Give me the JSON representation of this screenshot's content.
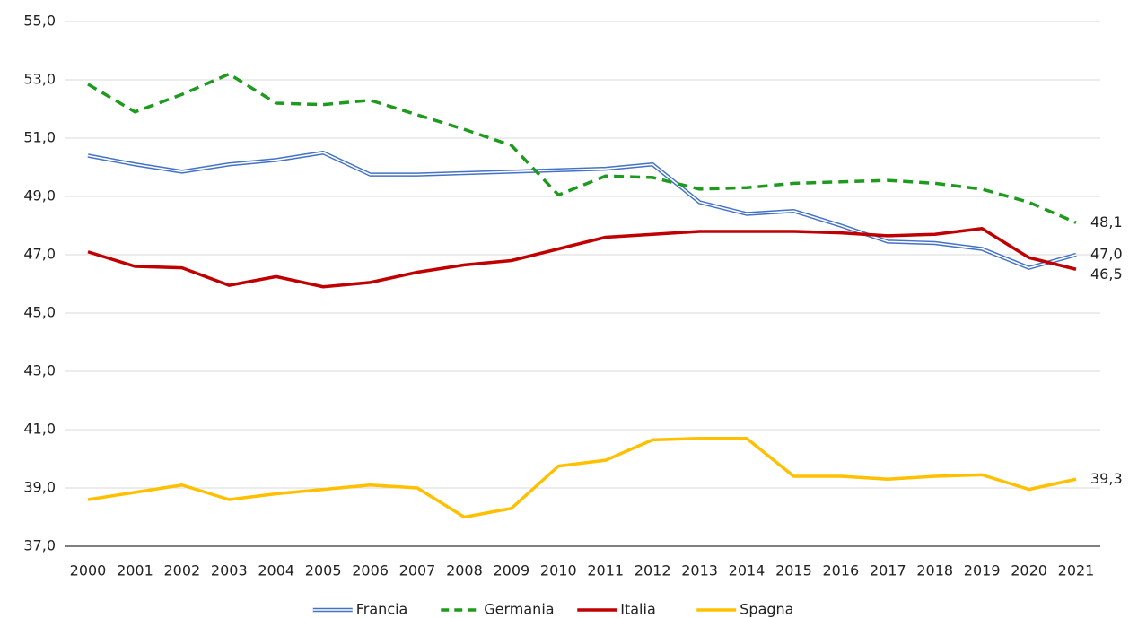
{
  "chart_data": {
    "type": "line",
    "categories": [
      "2000",
      "2001",
      "2002",
      "2003",
      "2004",
      "2005",
      "2006",
      "2007",
      "2008",
      "2009",
      "2010",
      "2011",
      "2012",
      "2013",
      "2014",
      "2015",
      "2016",
      "2017",
      "2018",
      "2019",
      "2020",
      "2021"
    ],
    "ylim": [
      37,
      55
    ],
    "yticks": [
      {
        "value": 37,
        "label": "37,0"
      },
      {
        "value": 39,
        "label": "39,0"
      },
      {
        "value": 41,
        "label": "41,0"
      },
      {
        "value": 43,
        "label": "43,0"
      },
      {
        "value": 45,
        "label": "45,0"
      },
      {
        "value": 47,
        "label": "47,0"
      },
      {
        "value": 49,
        "label": "49,0"
      },
      {
        "value": 51,
        "label": "51,0"
      },
      {
        "value": 53,
        "label": "53,0"
      },
      {
        "value": 55,
        "label": "55,0"
      }
    ],
    "grid": true,
    "legend": "bottom",
    "series": [
      {
        "name": "Francia",
        "color": "#4472c4",
        "style": "double",
        "values": [
          50.4,
          50.1,
          49.85,
          50.1,
          50.25,
          50.5,
          49.75,
          49.75,
          49.8,
          49.85,
          49.9,
          49.95,
          50.1,
          48.8,
          48.4,
          48.5,
          48.0,
          47.45,
          47.4,
          47.2,
          46.55,
          47.0
        ],
        "value_labels": [
          null,
          null,
          null,
          null,
          null,
          null,
          null,
          null,
          null,
          null,
          null,
          null,
          null,
          null,
          null,
          null,
          null,
          null,
          null,
          null,
          null,
          "47,0"
        ]
      },
      {
        "name": "Germania",
        "color": "#1e9a1e",
        "style": "dashed",
        "values": [
          52.85,
          51.9,
          52.5,
          53.2,
          52.2,
          52.15,
          52.3,
          51.8,
          51.3,
          50.75,
          49.05,
          49.7,
          49.65,
          49.25,
          49.3,
          49.45,
          49.5,
          49.55,
          49.45,
          49.25,
          48.8,
          48.1
        ],
        "value_labels": [
          null,
          null,
          null,
          null,
          null,
          null,
          null,
          null,
          null,
          null,
          null,
          null,
          null,
          null,
          null,
          null,
          null,
          null,
          null,
          null,
          null,
          "48,1"
        ]
      },
      {
        "name": "Italia",
        "color": "#c00000",
        "style": "solid",
        "values": [
          47.1,
          46.6,
          46.55,
          45.95,
          46.25,
          45.9,
          46.05,
          46.4,
          46.65,
          46.8,
          47.2,
          47.6,
          47.7,
          47.8,
          47.8,
          47.8,
          47.75,
          47.65,
          47.7,
          47.9,
          46.9,
          46.5
        ],
        "value_labels": [
          null,
          null,
          null,
          null,
          null,
          null,
          null,
          null,
          null,
          null,
          null,
          null,
          null,
          null,
          null,
          null,
          null,
          null,
          null,
          null,
          null,
          "46,5"
        ]
      },
      {
        "name": "Spagna",
        "color": "#ffc000",
        "style": "solid",
        "values": [
          38.6,
          38.85,
          39.1,
          38.6,
          38.8,
          38.95,
          39.1,
          39.0,
          38.0,
          38.3,
          39.75,
          39.95,
          40.65,
          40.7,
          40.7,
          39.4,
          39.4,
          39.3,
          39.4,
          39.45,
          38.95,
          39.3
        ],
        "value_labels": [
          null,
          null,
          null,
          null,
          null,
          null,
          null,
          null,
          null,
          null,
          null,
          null,
          null,
          null,
          null,
          null,
          null,
          null,
          null,
          null,
          null,
          "39,3"
        ]
      }
    ]
  }
}
